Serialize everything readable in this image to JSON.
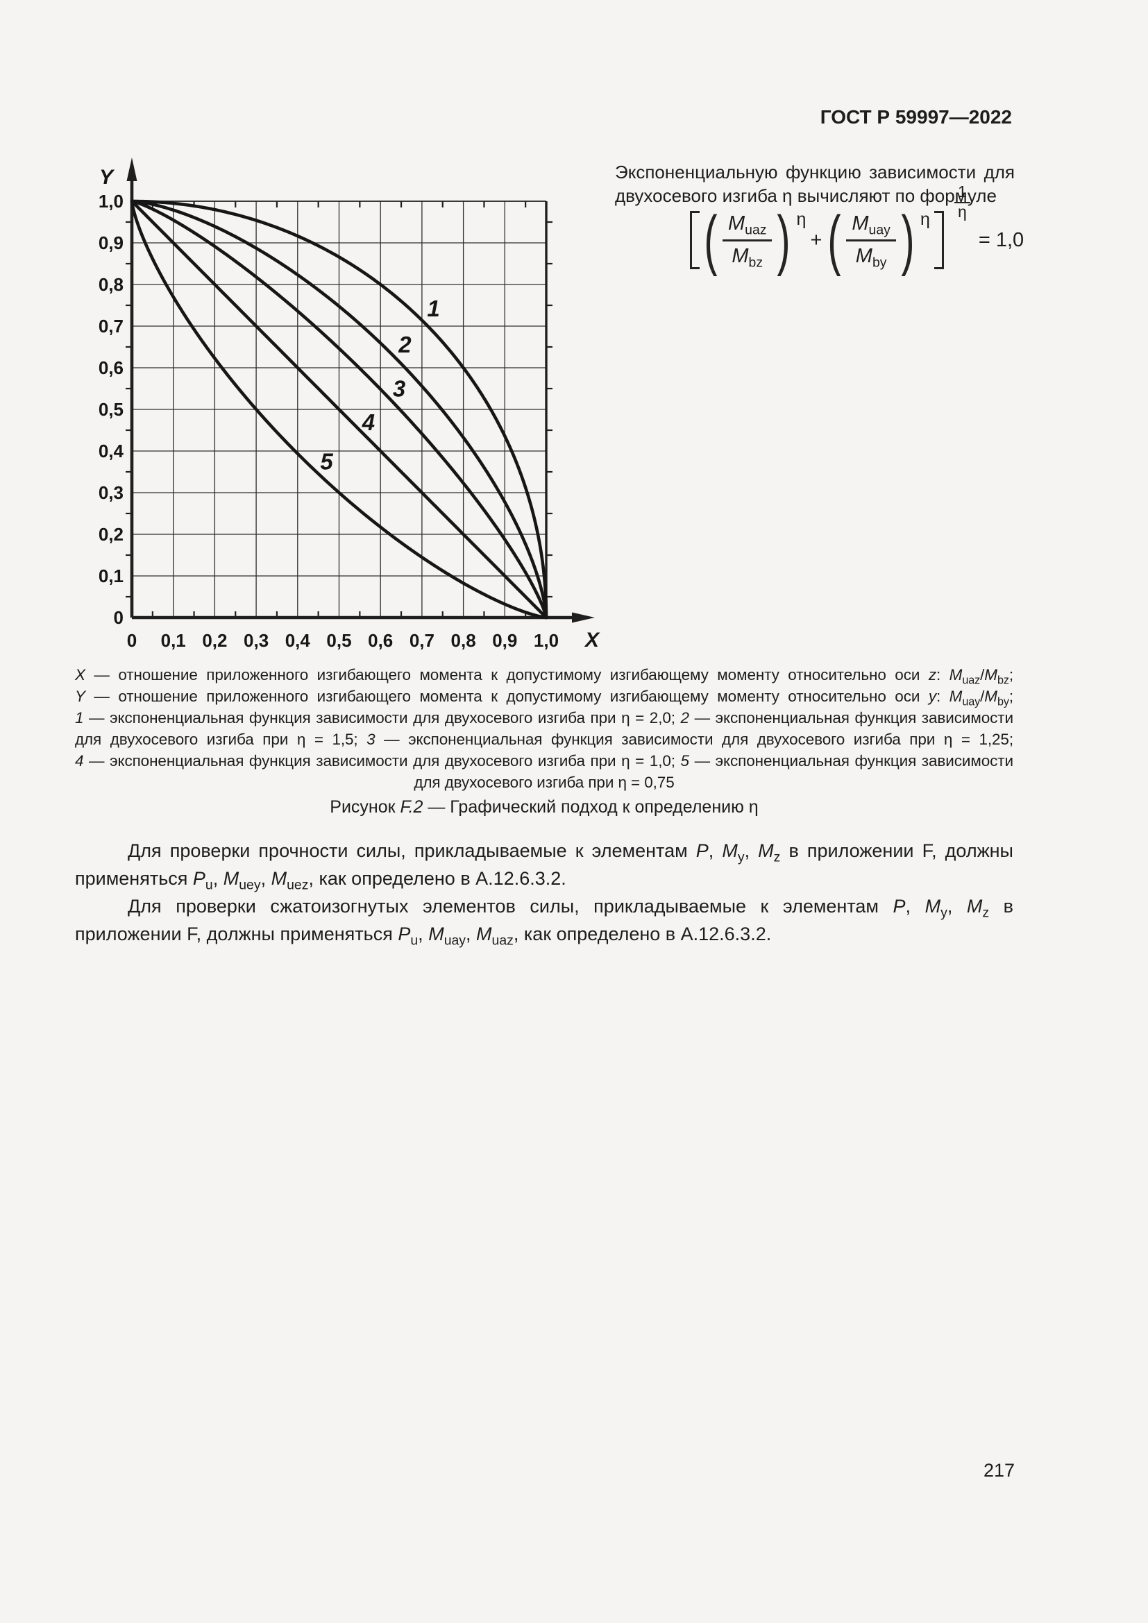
{
  "page": {
    "header": "ГОСТ Р 59997—2022",
    "page_number": "217"
  },
  "intro": {
    "line1": [
      {
        "t": "Экспоненциальную функцию зависимости для"
      }
    ],
    "line2": [
      {
        "t": "двухосевого изгиба η вычисляют по формуле"
      }
    ]
  },
  "formula": {
    "terms": [
      {
        "num_base": "M",
        "num_sub": "uaz",
        "den_base": "M",
        "den_sub": "bz",
        "exp": "η"
      },
      {
        "num_base": "M",
        "num_sub": "uay",
        "den_base": "M",
        "den_sub": "by",
        "exp": "η"
      }
    ],
    "operator": "+",
    "outer_exp": {
      "num": "1",
      "den": "η"
    },
    "rhs": "= 1,0"
  },
  "chart_data": {
    "type": "line",
    "title": "",
    "xlabel": "X",
    "ylabel": "Y",
    "xlim": [
      0,
      1.0
    ],
    "ylim": [
      0,
      1.0
    ],
    "grid": true,
    "x_ticks": [
      "0",
      "0,1",
      "0,2",
      "0,3",
      "0,4",
      "0,5",
      "0,6",
      "0,7",
      "0,8",
      "0,9",
      "1,0"
    ],
    "y_ticks": [
      "0",
      "0,1",
      "0,2",
      "0,3",
      "0,4",
      "0,5",
      "0,6",
      "0,7",
      "0,8",
      "0,9",
      "1,0"
    ],
    "x_points": [
      0,
      0.05,
      0.1,
      0.15,
      0.2,
      0.25,
      0.3,
      0.35,
      0.4,
      0.45,
      0.5,
      0.55,
      0.6,
      0.65,
      0.7,
      0.75,
      0.8,
      0.85,
      0.9,
      0.95,
      1.0
    ],
    "series": [
      {
        "name": "1",
        "eta": 2.0,
        "eta_label": "η = 2,0",
        "label_pos": [
          0.728,
          0.742
        ],
        "y": [
          1,
          0.999,
          0.995,
          0.989,
          0.98,
          0.968,
          0.954,
          0.937,
          0.917,
          0.893,
          0.866,
          0.835,
          0.8,
          0.76,
          0.714,
          0.661,
          0.6,
          0.527,
          0.436,
          0.312,
          0
        ]
      },
      {
        "name": "2",
        "eta": 1.5,
        "eta_label": "η = 1,5",
        "label_pos": [
          0.659,
          0.655
        ],
        "y": [
          1,
          0.993,
          0.979,
          0.961,
          0.939,
          0.915,
          0.887,
          0.857,
          0.823,
          0.787,
          0.748,
          0.705,
          0.659,
          0.61,
          0.556,
          0.497,
          0.433,
          0.36,
          0.278,
          0.176,
          0
        ]
      },
      {
        "name": "3",
        "eta": 1.25,
        "eta_label": "η = 1,25",
        "label_pos": [
          0.645,
          0.549
        ],
        "y": [
          1,
          0.981,
          0.955,
          0.925,
          0.891,
          0.856,
          0.818,
          0.778,
          0.736,
          0.692,
          0.646,
          0.598,
          0.549,
          0.496,
          0.441,
          0.384,
          0.323,
          0.258,
          0.188,
          0.108,
          0
        ]
      },
      {
        "name": "4",
        "eta": 1.0,
        "eta_label": "η = 1,0",
        "label_pos": [
          0.571,
          0.468
        ],
        "y": [
          1,
          0.95,
          0.9,
          0.85,
          0.8,
          0.75,
          0.7,
          0.65,
          0.6,
          0.55,
          0.5,
          0.45,
          0.4,
          0.35,
          0.3,
          0.25,
          0.2,
          0.15,
          0.1,
          0.05,
          0
        ]
      },
      {
        "name": "5",
        "eta": 0.75,
        "eta_label": "η = 0,75",
        "label_pos": [
          0.47,
          0.374
        ],
        "y": [
          1,
          0.862,
          0.77,
          0.692,
          0.623,
          0.559,
          0.5,
          0.445,
          0.394,
          0.345,
          0.3,
          0.257,
          0.217,
          0.18,
          0.145,
          0.112,
          0.083,
          0.056,
          0.032,
          0.013,
          0
        ]
      }
    ]
  },
  "legend": {
    "lines": [
      {
        "justify": true,
        "segments": [
          {
            "t": "X",
            "i": true
          },
          {
            "t": " — отношение приложенного изгибающего момента к допустимому изгибающему моменту относительно оси "
          },
          {
            "t": "z",
            "i": true
          },
          {
            "t": ": "
          },
          {
            "t": "M",
            "i": true
          },
          {
            "t": "uaz",
            "sub": true
          },
          {
            "t": "/"
          },
          {
            "t": "M",
            "i": true
          },
          {
            "t": "bz",
            "sub": true
          },
          {
            "t": ";"
          }
        ]
      },
      {
        "justify": true,
        "segments": [
          {
            "t": "Y",
            "i": true
          },
          {
            "t": " — отношение приложенного изгибающего момента к допустимому изгибающему моменту относительно оси "
          },
          {
            "t": "y",
            "i": true
          },
          {
            "t": ": "
          },
          {
            "t": "M",
            "i": true
          },
          {
            "t": "uay",
            "sub": true
          },
          {
            "t": "/"
          },
          {
            "t": "M",
            "i": true
          },
          {
            "t": "by",
            "sub": true
          },
          {
            "t": ";"
          }
        ]
      },
      {
        "justify": true,
        "segments": [
          {
            "t": "1",
            "i": true
          },
          {
            "t": " — экспоненциальная функция зависимости для двухосевого изгиба при η = 2,0; "
          },
          {
            "t": "2",
            "i": true
          },
          {
            "t": " — экспоненциальная функция зависимости"
          }
        ]
      },
      {
        "justify": true,
        "segments": [
          {
            "t": "для двухосевого изгиба при η = 1,5; "
          },
          {
            "t": "3",
            "i": true
          },
          {
            "t": " — экспоненциальная функция зависимости для двухосевого изгиба при η = 1,25;"
          }
        ]
      },
      {
        "justify": true,
        "segments": [
          {
            "t": "4",
            "i": true
          },
          {
            "t": " — экспоненциальная функция зависимости для двухосевого изгиба при η = 1,0; "
          },
          {
            "t": "5",
            "i": true
          },
          {
            "t": " — экспоненциальная функция зависимости"
          }
        ]
      },
      {
        "justify": false,
        "segments": [
          {
            "t": "для двухосевого изгиба при η = 0,75"
          }
        ]
      }
    ]
  },
  "caption": {
    "segments": [
      {
        "t": "Рисунок "
      },
      {
        "t": "F.2",
        "i": true
      },
      {
        "t": " — Графический подход к определению η"
      }
    ]
  },
  "paragraphs": [
    {
      "segments": [
        {
          "t": "Для проверки прочности силы, прикладываемые к элементам "
        },
        {
          "t": "P",
          "i": true
        },
        {
          "t": ", "
        },
        {
          "t": "M",
          "i": true
        },
        {
          "t": "y",
          "sub": true
        },
        {
          "t": ", "
        },
        {
          "t": "M",
          "i": true
        },
        {
          "t": "z",
          "sub": true
        },
        {
          "t": " в приложении F, должны применяться "
        },
        {
          "t": "P",
          "i": true
        },
        {
          "t": "u",
          "sub": true
        },
        {
          "t": ", "
        },
        {
          "t": "M",
          "i": true
        },
        {
          "t": "uey",
          "sub": true
        },
        {
          "t": ", "
        },
        {
          "t": "M",
          "i": true
        },
        {
          "t": "uez",
          "sub": true
        },
        {
          "t": ", как определено в А.12.6.3.2."
        }
      ]
    },
    {
      "segments": [
        {
          "t": "Для проверки сжатоизогнутых элементов силы, прикладываемые к элементам "
        },
        {
          "t": "P",
          "i": true
        },
        {
          "t": ", "
        },
        {
          "t": "M",
          "i": true
        },
        {
          "t": "y",
          "sub": true
        },
        {
          "t": ", "
        },
        {
          "t": "M",
          "i": true
        },
        {
          "t": "z",
          "sub": true
        },
        {
          "t": " в приложении F, должны применяться "
        },
        {
          "t": "P",
          "i": true
        },
        {
          "t": "u",
          "sub": true
        },
        {
          "t": ", "
        },
        {
          "t": "M",
          "i": true
        },
        {
          "t": "uay",
          "sub": true
        },
        {
          "t": ", "
        },
        {
          "t": "M",
          "i": true
        },
        {
          "t": "uaz",
          "sub": true
        },
        {
          "t": ", как определено в А.12.6.3.2."
        }
      ]
    }
  ]
}
